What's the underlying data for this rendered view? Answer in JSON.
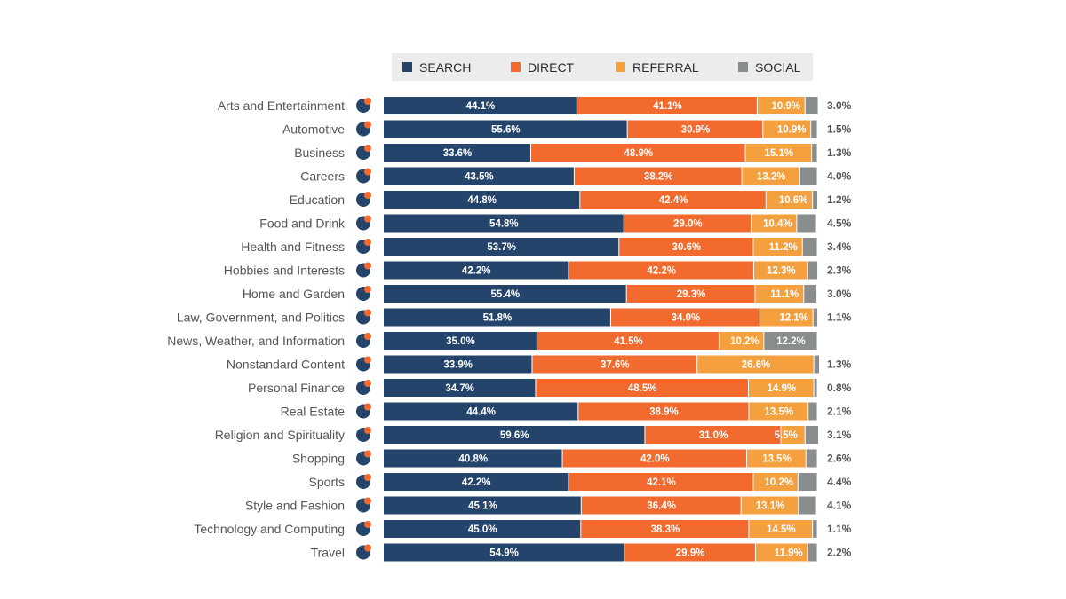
{
  "chart_data": {
    "type": "bar",
    "orientation": "horizontal",
    "stacked": true,
    "percent_scale": true,
    "categories": [
      "Arts and Entertainment",
      "Automotive",
      "Business",
      "Careers",
      "Education",
      "Food and Drink",
      "Health and Fitness",
      "Hobbies and Interests",
      "Home and Garden",
      "Law, Government, and Politics",
      "News, Weather, and Information",
      "Nonstandard Content",
      "Personal Finance",
      "Real Estate",
      "Religion and Spirituality",
      "Shopping",
      "Sports",
      "Style and Fashion",
      "Technology and Computing",
      "Travel"
    ],
    "category_icons": [
      "theater-masks-icon",
      "steering-wheel-icon",
      "chart-growth-icon",
      "briefcase-icon",
      "graduation-cap-icon",
      "food-cloche-icon",
      "heart-pulse-icon",
      "paint-hand-icon",
      "house-icon",
      "courthouse-icon",
      "newspaper-icon",
      "chat-bubble-icon",
      "money-bag-icon",
      "house-roof-icon",
      "religion-cross-icon",
      "shopping-bag-icon",
      "trophy-icon",
      "hanger-icon",
      "circuit-icon",
      "luggage-icon"
    ],
    "series": [
      {
        "name": "SEARCH",
        "color": "#24446b",
        "values": [
          44.1,
          55.6,
          33.6,
          43.5,
          44.8,
          54.8,
          53.7,
          42.2,
          55.4,
          51.8,
          35.0,
          33.9,
          34.7,
          44.4,
          59.6,
          40.8,
          42.2,
          45.1,
          45.0,
          54.9
        ],
        "labels": [
          "44.1%",
          "55.6%",
          "33.6%",
          "43.5%",
          "44.8%",
          "54.8%",
          "53.7%",
          "42.2%",
          "55.4%",
          "51.8%",
          "35.0%",
          "33.9%",
          "34.7%",
          "44.4%",
          "59.6%",
          "40.8%",
          "42.2%",
          "45.1%",
          "45.0%",
          "54.9%"
        ]
      },
      {
        "name": "DIRECT",
        "color": "#f26a2e",
        "values": [
          41.1,
          30.9,
          48.9,
          38.2,
          42.4,
          29.0,
          30.6,
          42.2,
          29.3,
          34.0,
          41.5,
          37.6,
          48.5,
          38.9,
          31.0,
          42.0,
          42.1,
          36.4,
          38.3,
          29.9
        ],
        "labels": [
          "41.1%",
          "30.9%",
          "48.9%",
          "38.2%",
          "42.4%",
          "29.0%",
          "30.6%",
          "42.2%",
          "29.3%",
          "34.0%",
          "41.5%",
          "37.6%",
          "48.5%",
          "38.9%",
          "31.0%",
          "42.0%",
          "42.1%",
          "36.4%",
          "38.3%",
          "29.9%"
        ]
      },
      {
        "name": "REFERRAL",
        "color": "#f5a03e",
        "values": [
          10.9,
          10.9,
          15.1,
          13.2,
          10.6,
          10.4,
          11.2,
          12.3,
          11.1,
          12.1,
          10.2,
          26.6,
          14.9,
          13.5,
          5.5,
          13.5,
          10.2,
          13.1,
          14.5,
          11.9
        ],
        "labels": [
          "10.9%",
          "10.9%",
          "15.1%",
          "13.2%",
          "10.6%",
          "10.4%",
          "11.2%",
          "12.3%",
          "11.1%",
          "12.1%",
          "10.2%",
          "26.6%",
          "14.9%",
          "13.5%",
          "5.5%",
          "13.5%",
          "10.2%",
          "13.1%",
          "14.5%",
          "11.9%"
        ]
      },
      {
        "name": "SOCIAL",
        "color": "#8a8d8e",
        "values": [
          3.0,
          1.5,
          1.3,
          4.0,
          1.2,
          4.5,
          3.4,
          2.3,
          3.0,
          1.1,
          12.2,
          1.3,
          0.8,
          2.1,
          3.1,
          2.6,
          4.4,
          4.1,
          1.1,
          2.2
        ],
        "labels": [
          "3.0%",
          "1.5%",
          "1.3%",
          "4.0%",
          "1.2%",
          "4.5%",
          "3.4%",
          "2.3%",
          "3.0%",
          "1.1%",
          "12.2%",
          "1.3%",
          "0.8%",
          "2.1%",
          "3.1%",
          "2.6%",
          "4.4%",
          "4.1%",
          "1.1%",
          "2.2%"
        ]
      }
    ],
    "legend": {
      "position": "top",
      "items": [
        "SEARCH",
        "DIRECT",
        "REFERRAL",
        "SOCIAL"
      ]
    },
    "grid": false,
    "xlim": [
      0,
      100
    ]
  }
}
